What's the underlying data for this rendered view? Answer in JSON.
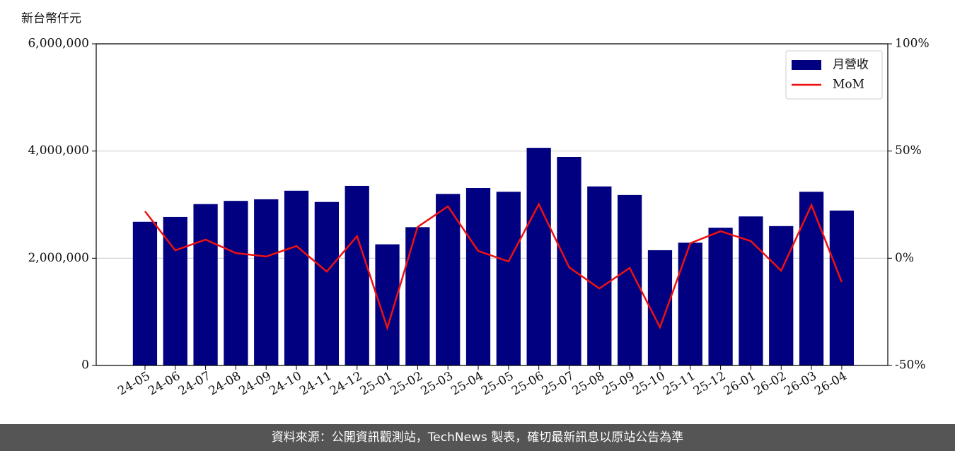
{
  "chart_data": {
    "type": "bar",
    "y_label": "新台幣仟元",
    "categories": [
      "24-05",
      "24-06",
      "24-07",
      "24-08",
      "24-09",
      "24-10",
      "24-11",
      "24-12",
      "25-01",
      "25-02",
      "25-03",
      "25-04",
      "25-05",
      "25-06",
      "25-07",
      "25-08",
      "25-09",
      "25-10",
      "25-11",
      "25-12",
      "26-01",
      "26-02",
      "26-03",
      "26-04"
    ],
    "series": [
      {
        "name": "月營收",
        "type": "bar",
        "color": "#000080",
        "values": [
          2680000,
          2770000,
          3010000,
          3070000,
          3100000,
          3260000,
          3050000,
          3350000,
          2260000,
          2580000,
          3200000,
          3310000,
          3240000,
          4060000,
          3890000,
          3340000,
          3180000,
          2150000,
          2290000,
          2570000,
          2780000,
          2600000,
          3240000,
          2890000
        ]
      },
      {
        "name": "MoM",
        "type": "line",
        "axis": "y2",
        "color": "#ee1111",
        "values": [
          21.9,
          3.7,
          8.7,
          2.4,
          0.8,
          5.7,
          -6.2,
          10.3,
          -32.5,
          14.6,
          24.2,
          3.4,
          -1.5,
          25.2,
          -4.2,
          -14.1,
          -4.5,
          -32.2,
          7.0,
          12.6,
          8.0,
          -5.8,
          24.8,
          -11.1
        ]
      }
    ],
    "ylim": [
      0,
      6000000
    ],
    "yticks": [
      0,
      {
        "value": 2000000,
        "label": "2,000,000"
      },
      {
        "value": 4000000,
        "label": "4,000,000"
      },
      {
        "value": 6000000,
        "label": "6,000,000"
      }
    ],
    "y2lim": [
      -50,
      100
    ],
    "y2ticks": [
      {
        "value": -50,
        "label": "-50%"
      },
      {
        "value": 0,
        "label": "0%"
      },
      {
        "value": 50,
        "label": "50%"
      },
      {
        "value": 100,
        "label": "100%"
      }
    ],
    "grid": true,
    "legend": "upper right"
  },
  "footer": "資料來源：公開資訊觀測站，TechNews 製表，確切最新訊息以原站公告為準"
}
